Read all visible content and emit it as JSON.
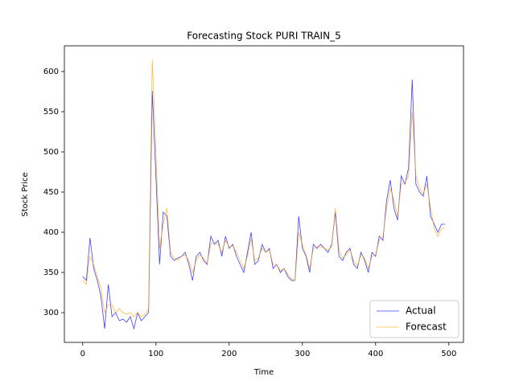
{
  "chart_data": {
    "type": "line",
    "title": "Forecasting Stock PURI TRAIN_5",
    "x_label": "Time",
    "y_label": "Stock Price",
    "x": [
      0,
      5,
      10,
      15,
      20,
      25,
      30,
      35,
      40,
      45,
      50,
      55,
      60,
      65,
      70,
      75,
      80,
      85,
      90,
      95,
      100,
      105,
      110,
      115,
      120,
      125,
      130,
      135,
      140,
      145,
      150,
      155,
      160,
      165,
      170,
      175,
      180,
      185,
      190,
      195,
      200,
      205,
      210,
      215,
      220,
      225,
      230,
      235,
      240,
      245,
      250,
      255,
      260,
      265,
      270,
      275,
      280,
      285,
      290,
      295,
      300,
      305,
      310,
      315,
      320,
      325,
      330,
      335,
      340,
      345,
      350,
      355,
      360,
      365,
      370,
      375,
      380,
      385,
      390,
      395,
      400,
      405,
      410,
      415,
      420,
      425,
      430,
      435,
      440,
      445,
      450,
      455,
      460,
      465,
      470,
      475,
      480,
      485,
      490,
      495
    ],
    "series": [
      {
        "name": "Actual",
        "color": "#0000ff",
        "values": [
          345,
          340,
          393,
          355,
          340,
          320,
          280,
          335,
          295,
          300,
          290,
          292,
          288,
          295,
          280,
          300,
          290,
          295,
          300,
          576,
          470,
          360,
          425,
          420,
          370,
          365,
          368,
          370,
          375,
          360,
          340,
          370,
          375,
          365,
          360,
          395,
          385,
          390,
          370,
          395,
          380,
          385,
          370,
          360,
          350,
          375,
          400,
          360,
          365,
          385,
          375,
          380,
          355,
          360,
          350,
          355,
          345,
          340,
          340,
          420,
          380,
          370,
          350,
          385,
          380,
          385,
          380,
          375,
          385,
          425,
          370,
          365,
          375,
          380,
          360,
          355,
          375,
          365,
          350,
          375,
          370,
          395,
          390,
          440,
          465,
          430,
          415,
          470,
          460,
          480,
          590,
          460,
          450,
          445,
          470,
          420,
          410,
          400,
          410,
          410
        ]
      },
      {
        "name": "Forecast",
        "color": "#ffa500",
        "values": [
          340,
          335,
          370,
          360,
          345,
          330,
          300,
          310,
          310,
          300,
          305,
          300,
          298,
          300,
          295,
          300,
          295,
          298,
          305,
          615,
          500,
          380,
          410,
          430,
          375,
          368,
          365,
          370,
          372,
          365,
          350,
          365,
          372,
          368,
          362,
          385,
          388,
          385,
          375,
          390,
          382,
          383,
          375,
          365,
          355,
          370,
          392,
          365,
          368,
          380,
          375,
          378,
          360,
          360,
          352,
          355,
          348,
          342,
          340,
          400,
          385,
          372,
          355,
          380,
          382,
          382,
          380,
          378,
          382,
          430,
          378,
          368,
          372,
          378,
          365,
          358,
          372,
          368,
          355,
          370,
          372,
          390,
          395,
          430,
          455,
          440,
          420,
          460,
          462,
          470,
          550,
          470,
          455,
          448,
          460,
          430,
          405,
          395,
          405,
          405
        ]
      }
    ],
    "xlim": [
      -25,
      520
    ],
    "ylim": [
      263,
      632
    ],
    "xticks": [
      0,
      100,
      200,
      300,
      400,
      500
    ],
    "yticks": [
      300,
      350,
      400,
      450,
      500,
      550,
      600
    ],
    "legend": "lower right"
  }
}
